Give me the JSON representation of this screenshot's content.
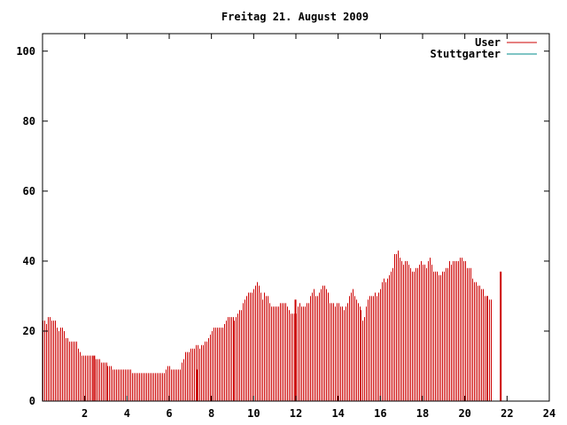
{
  "chart_data": {
    "type": "bar",
    "title": "Freitag 21. August 2009",
    "xlim": [
      0,
      24
    ],
    "ylim": [
      0,
      105
    ],
    "xticks": [
      2,
      4,
      6,
      8,
      10,
      12,
      14,
      16,
      18,
      20,
      22,
      24
    ],
    "yticks": [
      0,
      20,
      40,
      60,
      80,
      100
    ],
    "legend_position": "top-right",
    "series": [
      {
        "name": "User",
        "color": "#cc0000",
        "bin_minutes": 5,
        "values": [
          23,
          23,
          22,
          24,
          24,
          23,
          23,
          23,
          21,
          20,
          21,
          21,
          20,
          18,
          18,
          17,
          17,
          17,
          17,
          17,
          15,
          14,
          13,
          13,
          13,
          13,
          13,
          13,
          13,
          12,
          12,
          12,
          12,
          11,
          11,
          11,
          11,
          10,
          10,
          10,
          9,
          9,
          9,
          9,
          9,
          9,
          9,
          9,
          9,
          9,
          9,
          8,
          8,
          8,
          8,
          8,
          8,
          8,
          8,
          8,
          8,
          8,
          8,
          8,
          8,
          8,
          8,
          8,
          8,
          8,
          9,
          10,
          10,
          9,
          9,
          9,
          9,
          9,
          9,
          11,
          12,
          14,
          14,
          14,
          15,
          15,
          15,
          16,
          16,
          15,
          16,
          16,
          17,
          17,
          18,
          19,
          20,
          21,
          21,
          21,
          21,
          21,
          21,
          22,
          23,
          24,
          24,
          24,
          24,
          23,
          24,
          25,
          26,
          26,
          28,
          29,
          30,
          31,
          31,
          31,
          32,
          33,
          34,
          33,
          31,
          29,
          31,
          30,
          30,
          28,
          27,
          27,
          27,
          27,
          27,
          28,
          28,
          28,
          28,
          27,
          26,
          25,
          25,
          25,
          25,
          27,
          28,
          27,
          27,
          27,
          28,
          28,
          30,
          31,
          32,
          30,
          30,
          31,
          32,
          33,
          33,
          32,
          31,
          28,
          28,
          28,
          27,
          28,
          28,
          27,
          27,
          26,
          27,
          28,
          30,
          31,
          32,
          30,
          29,
          28,
          27,
          26,
          23,
          24,
          27,
          29,
          30,
          30,
          30,
          31,
          30,
          31,
          32,
          34,
          35,
          34,
          35,
          36,
          37,
          38,
          42,
          42,
          43,
          41,
          40,
          39,
          40,
          40,
          39,
          38,
          37,
          37,
          38,
          38,
          39,
          40,
          39,
          39,
          38,
          40,
          41,
          39,
          37,
          37,
          37,
          36,
          36,
          37,
          37,
          38,
          38,
          40,
          39,
          40,
          40,
          40,
          40,
          41,
          41,
          40,
          40,
          38,
          38,
          38,
          35,
          34,
          34,
          33,
          33,
          32,
          32,
          30,
          30,
          30,
          29,
          29
        ]
      },
      {
        "name": "Stuttgarter",
        "color": "#008b8b",
        "values": []
      }
    ],
    "highlights": [
      {
        "x": 2.45,
        "value": 13
      },
      {
        "x": 7.33,
        "value": 9
      },
      {
        "x": 11.98,
        "value": 29
      },
      {
        "x": 21.7,
        "value": 37
      }
    ]
  }
}
